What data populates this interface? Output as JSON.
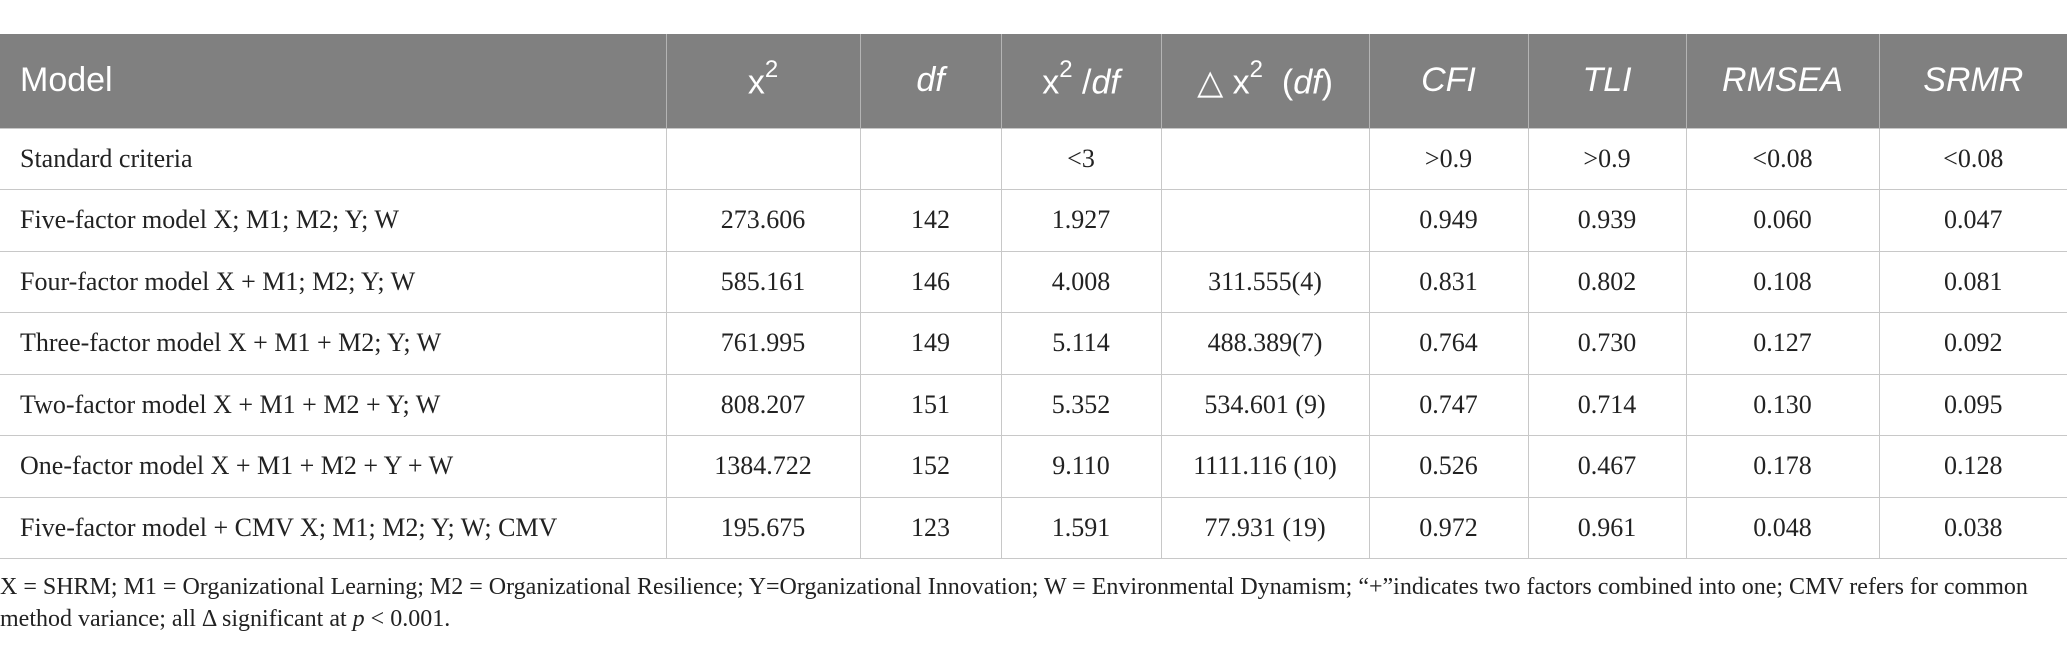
{
  "table": {
    "headers": {
      "model": "Model",
      "chi2_base": "x",
      "chi2_sup": "2",
      "df": "df",
      "chi2df_base": "x",
      "chi2df_sup": "2",
      "chi2df_sep": " /",
      "chi2df_df": "df",
      "delta_symbol": "△ x",
      "delta_sup": "2",
      "delta_open": "  (",
      "delta_df": "df",
      "delta_close": ")",
      "cfi": "CFI",
      "tli": "TLI",
      "rmsea": "RMSEA",
      "srmr": "SRMR"
    },
    "rows": [
      [
        "Standard criteria",
        "",
        "",
        "<3",
        "",
        ">0.9",
        ">0.9",
        "<0.08",
        "<0.08"
      ],
      [
        "Five-factor model X; M1; M2; Y; W",
        "273.606",
        "142",
        "1.927",
        "",
        "0.949",
        "0.939",
        "0.060",
        "0.047"
      ],
      [
        "Four-factor model X + M1; M2; Y; W",
        "585.161",
        "146",
        "4.008",
        "311.555(4)",
        "0.831",
        "0.802",
        "0.108",
        "0.081"
      ],
      [
        "Three-factor model X + M1 + M2; Y; W",
        "761.995",
        "149",
        "5.114",
        "488.389(7)",
        "0.764",
        "0.730",
        "0.127",
        "0.092"
      ],
      [
        "Two-factor model X + M1 + M2 + Y; W",
        "808.207",
        "151",
        "5.352",
        "534.601 (9)",
        "0.747",
        "0.714",
        "0.130",
        "0.095"
      ],
      [
        "One-factor model X + M1 + M2 + Y + W",
        "1384.722",
        "152",
        "9.110",
        "1111.116 (10)",
        "0.526",
        "0.467",
        "0.178",
        "0.128"
      ],
      [
        "Five-factor model + CMV X; M1; M2; Y; W; CMV",
        "195.675",
        "123",
        "1.591",
        "77.931 (19)",
        "0.972",
        "0.961",
        "0.048",
        "0.038"
      ]
    ]
  },
  "note": {
    "text_a": "X = SHRM; M1 = Organizational Learning; M2 = Organizational Resilience; Y=Organizational Innovation; W = Environmental Dynamism; “+”indicates two factors combined into one; CMV refers for common method variance; all Δ significant at ",
    "p": "p",
    "text_b": " < 0.001."
  }
}
